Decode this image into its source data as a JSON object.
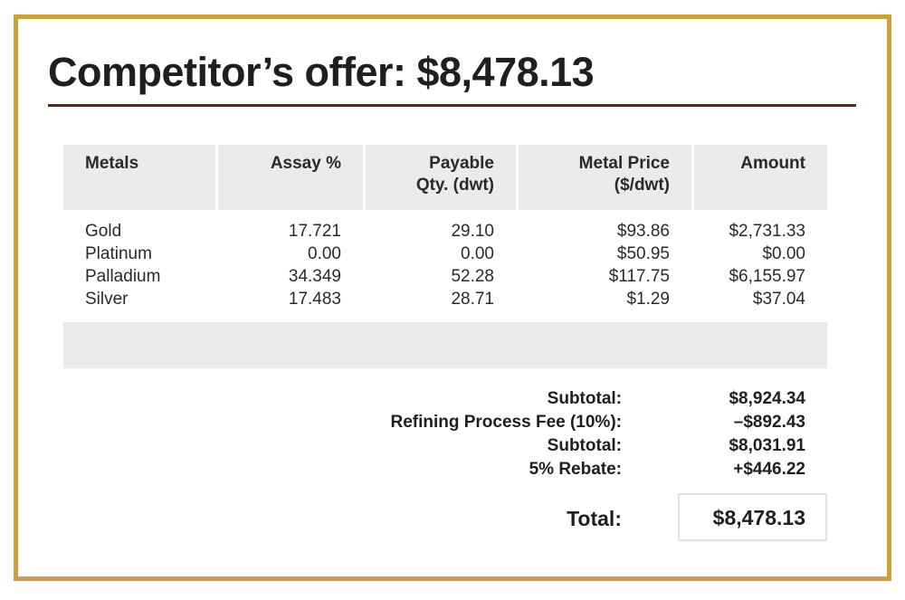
{
  "title": "Competitor’s offer: $8,478.13",
  "colors": {
    "frame": "#c9a23f",
    "rule": "#5b2a1d",
    "header_bg": "#ebebeb"
  },
  "table": {
    "headers": [
      {
        "line1": "Metals",
        "line2": ""
      },
      {
        "line1": "Assay %",
        "line2": ""
      },
      {
        "line1": "Payable",
        "line2": "Qty. (dwt)"
      },
      {
        "line1": "Metal Price",
        "line2": "($/dwt)"
      },
      {
        "line1": "Amount",
        "line2": ""
      }
    ],
    "rows": [
      {
        "metal": "Gold",
        "assay": "17.721",
        "qty": "29.10",
        "price": "$93.86",
        "amount": "$2,731.33"
      },
      {
        "metal": "Platinum",
        "assay": "0.00",
        "qty": "0.00",
        "price": "$50.95",
        "amount": "$0.00"
      },
      {
        "metal": "Palladium",
        "assay": "34.349",
        "qty": "52.28",
        "price": "$117.75",
        "amount": "$6,155.97"
      },
      {
        "metal": "Silver",
        "assay": "17.483",
        "qty": "28.71",
        "price": "$1.29",
        "amount": "$37.04"
      }
    ]
  },
  "summary": [
    {
      "label": "Subtotal:",
      "value": "$8,924.34"
    },
    {
      "label": "Refining Process Fee (10%):",
      "value": "–$892.43"
    },
    {
      "label": "Subtotal:",
      "value": "$8,031.91"
    },
    {
      "label": "5% Rebate:",
      "value": "+$446.22"
    }
  ],
  "total": {
    "label": "Total:",
    "value": "$8,478.13"
  }
}
